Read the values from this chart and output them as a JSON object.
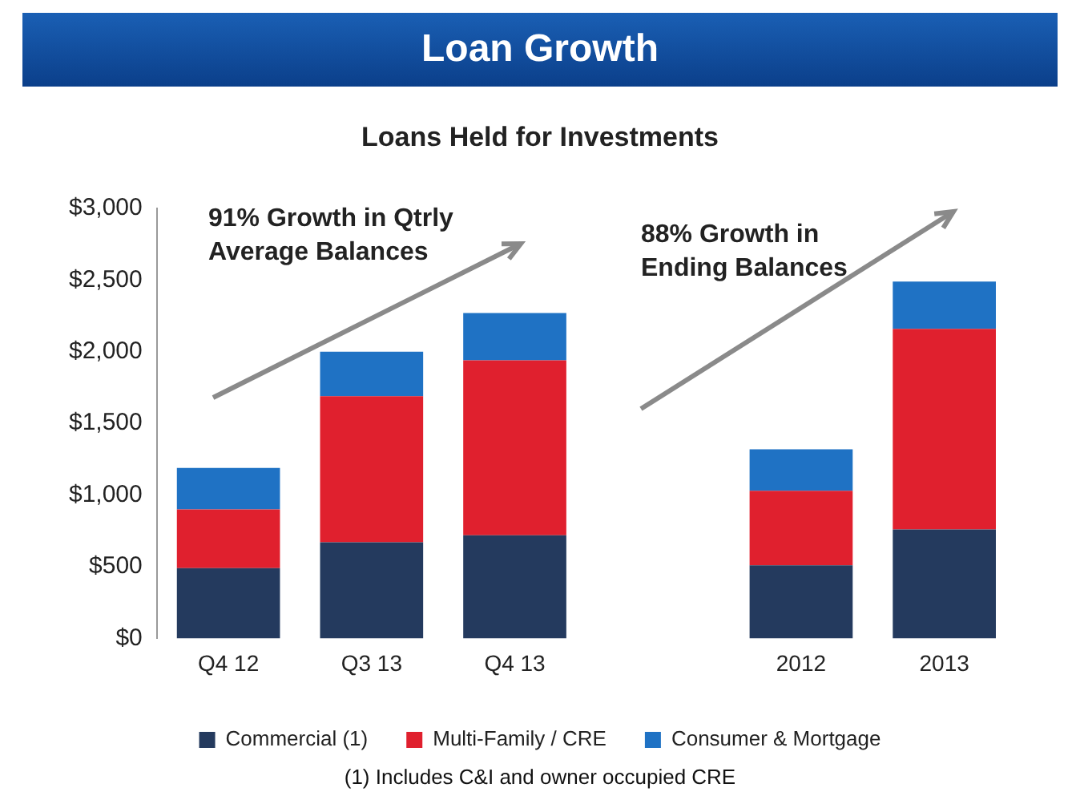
{
  "chart_data": {
    "type": "bar",
    "stacked": true,
    "title": "Loan Growth",
    "subtitle": "Loans Held for Investments",
    "categories": [
      "Q4 12",
      "Q3 13",
      "Q4 13",
      null,
      "2012",
      "2013"
    ],
    "series": [
      {
        "name": "Commercial (1)",
        "color": "#243a5e",
        "values": [
          490,
          670,
          720,
          null,
          510,
          760
        ]
      },
      {
        "name": "Multi-Family / CRE",
        "color": "#e0202e",
        "values": [
          410,
          1020,
          1220,
          null,
          520,
          1400
        ]
      },
      {
        "name": "Consumer & Mortgage",
        "color": "#1f72c4",
        "values": [
          290,
          310,
          330,
          null,
          290,
          330
        ]
      }
    ],
    "ylim": [
      0,
      3000
    ],
    "yticks": [
      {
        "value": 0,
        "label": "$0"
      },
      {
        "value": 500,
        "label": "$500"
      },
      {
        "value": 1000,
        "label": "$1,000"
      },
      {
        "value": 1500,
        "label": "$1,500"
      },
      {
        "value": 2000,
        "label": "$2,000"
      },
      {
        "value": 2500,
        "label": "$2,500"
      },
      {
        "value": 3000,
        "label": "$3,000"
      }
    ],
    "grid": false,
    "legend": "bottom",
    "annotations": [
      "91% Growth in Qtrly\nAverage Balances",
      "88% Growth in\nEnding Balances",
      "(1) Includes C&I and owner occupied CRE"
    ]
  }
}
